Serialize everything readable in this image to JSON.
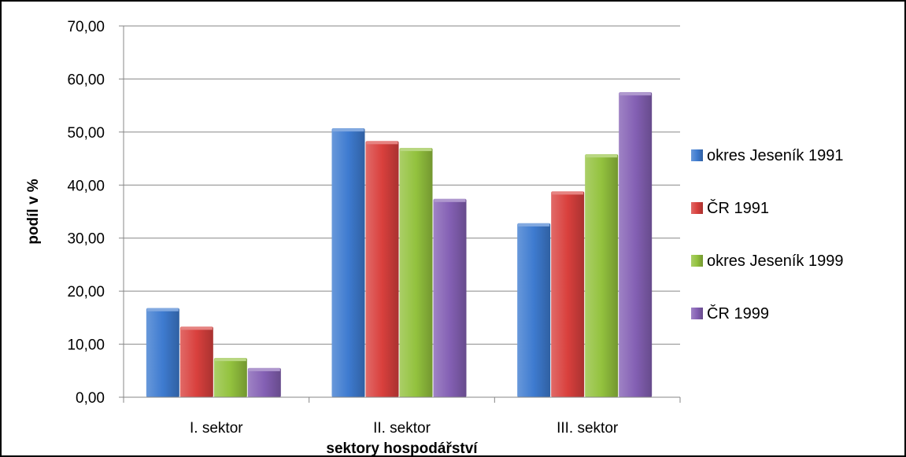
{
  "chart_data": {
    "type": "bar",
    "title": "",
    "xlabel": "sektory hospodářství",
    "ylabel": "podíl v %",
    "categories": [
      "I. sektor",
      "II. sektor",
      "III. sektor"
    ],
    "series": [
      {
        "name": "okres Jeseník 1991",
        "color": "#3e7bd0",
        "values": [
          16.8,
          50.7,
          32.8
        ]
      },
      {
        "name": "ČR 1991",
        "color": "#d9403d",
        "values": [
          13.3,
          48.3,
          38.8
        ]
      },
      {
        "name": "okres Jeseník 1999",
        "color": "#93c23e",
        "values": [
          7.4,
          47.0,
          45.8
        ]
      },
      {
        "name": "ČR 1999",
        "color": "#8460b4",
        "values": [
          5.5,
          37.4,
          57.5
        ]
      }
    ],
    "ylim": [
      0,
      70
    ],
    "yticks": [
      "0,00",
      "10,00",
      "20,00",
      "30,00",
      "40,00",
      "50,00",
      "60,00",
      "70,00"
    ],
    "grid": true,
    "legend_position": "right"
  }
}
